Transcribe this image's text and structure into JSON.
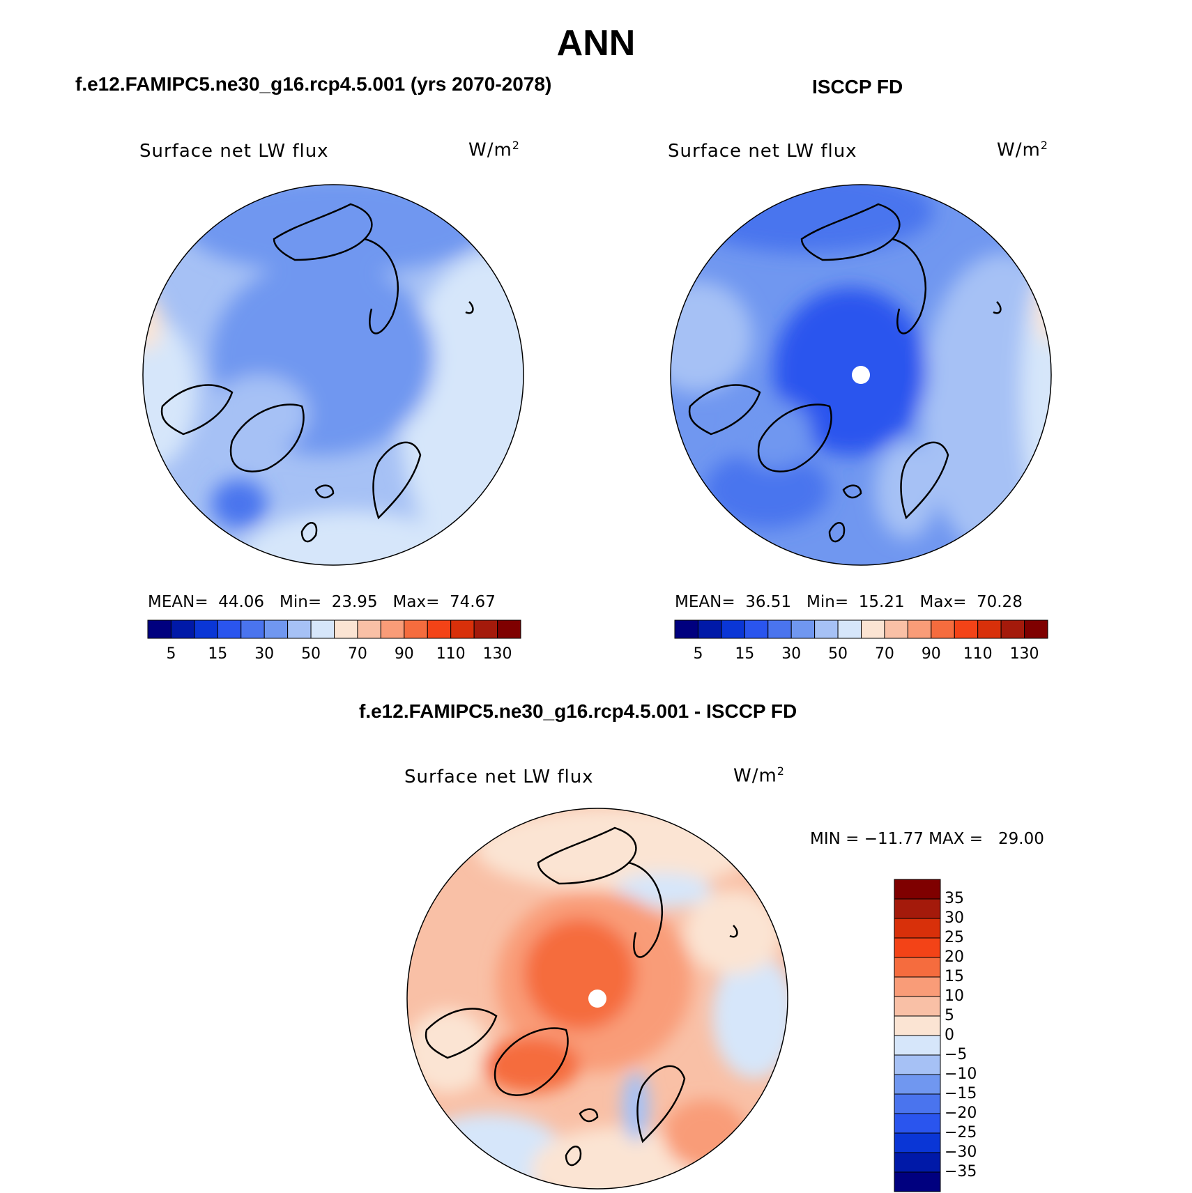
{
  "title": "ANN",
  "colors": {
    "scale": [
      "#00007f",
      "#0019a8",
      "#0a36d6",
      "#2a55ee",
      "#4a74ee",
      "#7097f0",
      "#a6c1f5",
      "#d6e6fa",
      "#fbe4d3",
      "#f9c0a6",
      "#f99c78",
      "#f56c3e",
      "#f34317",
      "#d8300a",
      "#a41a0b",
      "#7f0000"
    ]
  },
  "panels": [
    {
      "title": "f.e12.FAMIPC5.ne30_g16.rcp4.5.001 (yrs 2070-2078)",
      "variable": "Surface net LW flux",
      "units_base": "W/m",
      "units_exp": "2",
      "stats": {
        "mean_label": "MEAN=",
        "mean": "44.06",
        "min_label": "Min=",
        "min": "23.95",
        "max_label": "Max=",
        "max": "74.67"
      },
      "colorbar_labels": [
        "5",
        "15",
        "30",
        "50",
        "70",
        "90",
        "110",
        "130"
      ]
    },
    {
      "title": "ISCCP FD",
      "variable": "Surface net LW flux",
      "units_base": "W/m",
      "units_exp": "2",
      "stats": {
        "mean_label": "MEAN=",
        "mean": "36.51",
        "min_label": "Min=",
        "min": "15.21",
        "max_label": "Max=",
        "max": "70.28"
      },
      "colorbar_labels": [
        "5",
        "15",
        "30",
        "50",
        "70",
        "90",
        "110",
        "130"
      ]
    },
    {
      "title": "f.e12.FAMIPC5.ne30_g16.rcp4.5.001 - ISCCP FD",
      "variable": "Surface net LW flux",
      "units_base": "W/m",
      "units_exp": "2",
      "stats_text": "MIN = −11.77 MAX =   29.00",
      "colorbar_labels": [
        "35",
        "30",
        "25",
        "20",
        "15",
        "10",
        "5",
        "0",
        "−5",
        "−10",
        "−15",
        "−20",
        "−25",
        "−30",
        "−35"
      ]
    }
  ]
}
